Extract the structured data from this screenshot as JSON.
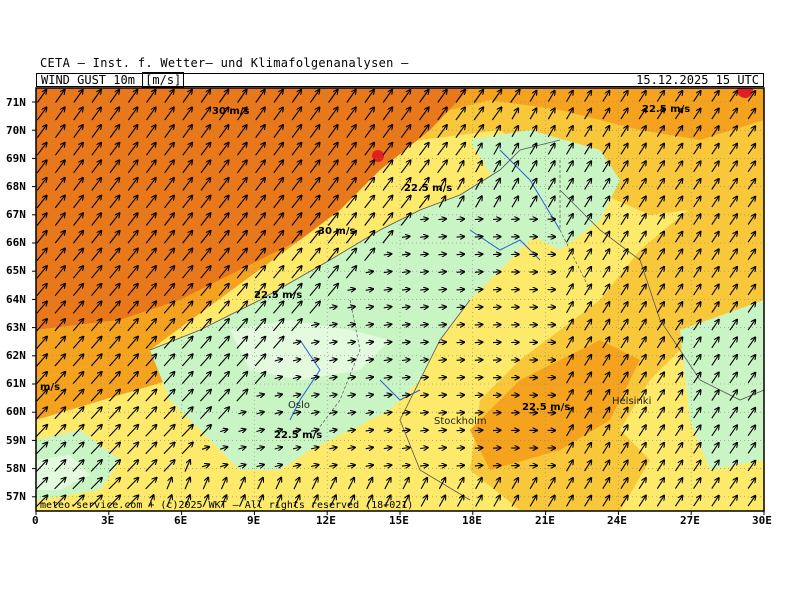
{
  "header": {
    "organization": "CETA — Inst. f. Wetter— und Klimafolgenanalysen —",
    "variable": "WIND_GUST_10m",
    "unit": "[m/s]",
    "datetime": "15.12.2025 15 UTC"
  },
  "lat_labels": [
    "71N",
    "70N",
    "69N",
    "68N",
    "67N",
    "66N",
    "65N",
    "64N",
    "63N",
    "62N",
    "61N",
    "60N",
    "59N",
    "58N",
    "57N"
  ],
  "lon_labels": [
    "0",
    "3E",
    "6E",
    "9E",
    "12E",
    "15E",
    "18E",
    "21E",
    "24E",
    "27E",
    "30E"
  ],
  "cities": {
    "oslo": "Oslo",
    "stockholm": "Stockholm",
    "helsinki": "Helsinki"
  },
  "contour_labels": {
    "c1": "30 m/s",
    "c2": "22.5 m/s",
    "c3": "22.5 m/s",
    "c4": "30 m/s",
    "c5": "22.5 m/s",
    "c6": "22.5 m/s",
    "c7": "22.5 m/s",
    "c8": "m/s"
  },
  "copyright": "meteo-service.com + (c)2025 WKT — All rights reserved (18+021)",
  "colors": {
    "orange_dark": "#e8781a",
    "orange": "#f5a21f",
    "yellow_orange": "#f9c83a",
    "yellow": "#fde96a",
    "light_green": "#c9f5c5",
    "pale_green": "#e3fadf",
    "border": "#555555",
    "river": "#2a5bd7"
  }
}
